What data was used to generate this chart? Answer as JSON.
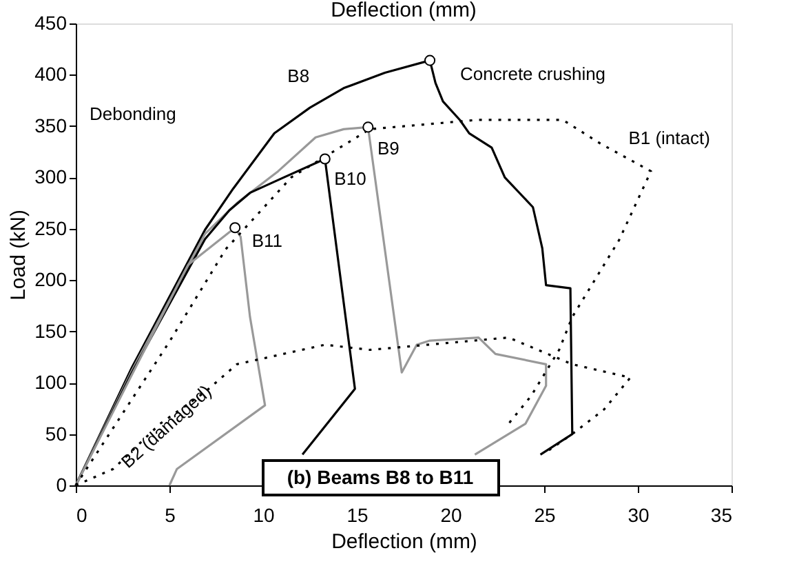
{
  "chart_data": {
    "type": "line",
    "xlabel": "Deflection (mm)",
    "x2label": "Deflection (mm)",
    "ylabel": "Load (kN)",
    "xlim": [
      0,
      35
    ],
    "xticks": [
      0,
      5,
      10,
      15,
      20,
      25,
      30,
      35
    ],
    "ylim": [
      0,
      450
    ],
    "yticks": [
      0,
      50,
      100,
      150,
      200,
      250,
      300,
      350,
      400,
      450
    ],
    "grid": false,
    "marker": "none",
    "annotations": [
      "Debonding",
      {
        "text": "Concrete crushing",
        "x": 18.9,
        "y": 414
      },
      "(b) Beams B8 to B11"
    ],
    "series": [
      {
        "name": "B8",
        "color": "#000000",
        "line_style": "solid",
        "x": [
          0,
          3,
          6.9,
          8.4,
          10.6,
          12.5,
          14.3,
          16.5,
          18.9,
          19.2,
          19.6,
          20.5,
          21,
          22.2,
          22.9,
          24.4,
          24.9,
          25.1,
          26.4,
          26.5,
          24.8
        ],
        "values": [
          0,
          115,
          249,
          289,
          343,
          368,
          387,
          402,
          414,
          392,
          374,
          356,
          343,
          329,
          300,
          271,
          231,
          195,
          192,
          50,
          30
        ]
      },
      {
        "name": "B9",
        "color": "#999999",
        "line_style": "solid",
        "x": [
          0,
          3,
          6.9,
          8.6,
          10.8,
          12.8,
          14.3,
          15.6,
          17.4,
          18.2,
          18.9,
          21.5,
          22.4,
          25.1,
          25.1,
          24,
          21.3
        ],
        "values": [
          0,
          112,
          245,
          275,
          306,
          339,
          347,
          349,
          110,
          137,
          141,
          144,
          128,
          118,
          97,
          60,
          30
        ]
      },
      {
        "name": "B10",
        "color": "#000000",
        "line_style": "solid",
        "x": [
          0,
          3,
          6.9,
          8.2,
          9.3,
          11.1,
          13.3,
          14.9,
          12.1
        ],
        "values": [
          0,
          110,
          240,
          268,
          285,
          300,
          318,
          94,
          30
        ]
      },
      {
        "name": "B11",
        "color": "#999999",
        "line_style": "solid",
        "x": [
          0,
          3,
          6,
          8.5,
          8.8,
          9.3,
          10.1,
          5.4,
          5.0
        ],
        "values": [
          0,
          108,
          215,
          251,
          242,
          164,
          78,
          16,
          0
        ]
      },
      {
        "name": "B1 (intact)",
        "color": "#000000",
        "line_style": "dotted",
        "x": [
          0,
          5,
          8,
          11.5,
          15.7,
          21.4,
          26,
          28,
          30.7,
          29,
          26.5,
          25.8,
          24.3,
          23.1
        ],
        "values": [
          0,
          140,
          230,
          300,
          347,
          356,
          356,
          333,
          306,
          239,
          164,
          132,
          87,
          60
        ]
      },
      {
        "name": "B2 (damaged)",
        "color": "#000000",
        "line_style": "dotted",
        "x": [
          0,
          2,
          4.5,
          6.9,
          8.6,
          13.3,
          15.7,
          23.1,
          26.5,
          29.6,
          28.2,
          26.5,
          25
        ],
        "values": [
          0,
          16,
          60,
          91,
          118,
          137,
          132,
          144,
          118,
          105,
          74,
          50,
          31
        ]
      },
      {
        "type": "scatter",
        "marker": "circle",
        "color": "#000000",
        "x": [
          18.9,
          15.6,
          13.3,
          8.5
        ],
        "values": [
          414,
          349,
          318,
          251
        ]
      }
    ]
  }
}
